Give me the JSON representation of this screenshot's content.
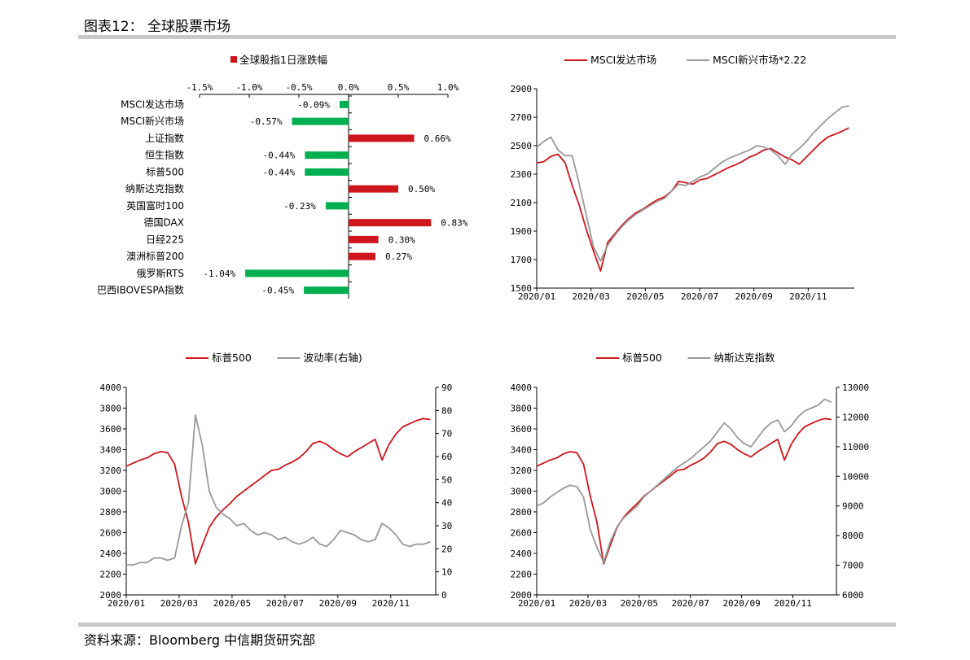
{
  "header": {
    "title": "图表12： 全球股票市场"
  },
  "footer": {
    "source": "资料来源：Bloomberg 中信期货研究部"
  },
  "colors": {
    "red": "#d0161d",
    "green": "#00b050",
    "gray": "#999999"
  },
  "chart_data": [
    {
      "type": "bar",
      "orientation": "horizontal",
      "legend": [
        "全球股指1日涨跌幅"
      ],
      "categories": [
        "MSCI发达市场",
        "MSCI新兴市场",
        "上证指数",
        "恒生指数",
        "标普500",
        "纳斯达克指数",
        "英国富时100",
        "德国DAX",
        "日经225",
        "澳洲标普200",
        "俄罗斯RTS",
        "巴西IBOVESPA指数"
      ],
      "values": [
        -0.09,
        -0.57,
        0.66,
        -0.44,
        -0.44,
        0.5,
        -0.23,
        0.83,
        0.3,
        0.27,
        -1.04,
        -0.45
      ],
      "value_labels": [
        "-0.09%",
        "-0.57%",
        "0.66%",
        "-0.44%",
        "-0.44%",
        "0.50%",
        "-0.23%",
        "0.83%",
        "0.30%",
        "0.27%",
        "-1.04%",
        "-0.45%"
      ],
      "xlim": [
        -1.5,
        1.0
      ],
      "xticks": [
        -1.5,
        -1.0,
        -0.5,
        0.0,
        0.5,
        1.0
      ],
      "xtick_labels": [
        "-1.5%",
        "-1.0%",
        "-0.5%",
        "0.0%",
        "0.5%",
        "1.0%"
      ]
    },
    {
      "type": "line",
      "series": [
        {
          "name": "MSCI发达市场",
          "color": "#d0161d",
          "values": [
            2378,
            2388,
            2425,
            2440,
            2380,
            2220,
            2080,
            1910,
            1760,
            1620,
            1820,
            1880,
            1940,
            1990,
            2030,
            2055,
            2090,
            2120,
            2140,
            2180,
            2250,
            2240,
            2230,
            2260,
            2270,
            2295,
            2320,
            2345,
            2365,
            2390,
            2420,
            2440,
            2470,
            2480,
            2450,
            2420,
            2400,
            2370,
            2420,
            2470,
            2520,
            2560,
            2580,
            2600,
            2625
          ]
        },
        {
          "name": "MSCI新兴市场*2.22",
          "color": "#999999",
          "values": [
            2490,
            2530,
            2560,
            2470,
            2430,
            2430,
            2230,
            2010,
            1790,
            1690,
            1800,
            1870,
            1930,
            1980,
            2020,
            2050,
            2080,
            2110,
            2130,
            2180,
            2230,
            2220,
            2250,
            2280,
            2300,
            2340,
            2380,
            2410,
            2430,
            2450,
            2470,
            2500,
            2490,
            2470,
            2430,
            2370,
            2440,
            2480,
            2530,
            2590,
            2640,
            2690,
            2730,
            2770,
            2780
          ]
        }
      ],
      "xtick_labels": [
        "2020/01",
        "2020/03",
        "2020/05",
        "2020/07",
        "2020/09",
        "2020/11"
      ],
      "ylim": [
        1500,
        2900
      ],
      "yticks": [
        1500,
        1700,
        1900,
        2100,
        2300,
        2500,
        2700,
        2900
      ]
    },
    {
      "type": "line",
      "dual_axis": true,
      "series": [
        {
          "name": "标普500",
          "axis": "left",
          "color": "#d0161d",
          "values": [
            3240,
            3270,
            3300,
            3320,
            3360,
            3380,
            3370,
            3260,
            2950,
            2700,
            2300,
            2480,
            2650,
            2750,
            2820,
            2880,
            2950,
            3000,
            3050,
            3100,
            3150,
            3200,
            3210,
            3250,
            3280,
            3320,
            3380,
            3460,
            3480,
            3450,
            3400,
            3360,
            3330,
            3380,
            3420,
            3460,
            3500,
            3300,
            3450,
            3550,
            3620,
            3650,
            3680,
            3700,
            3690
          ]
        },
        {
          "name": "波动率(右轴)",
          "axis": "right",
          "color": "#999999",
          "values": [
            13,
            13,
            14,
            14,
            16,
            16,
            15,
            16,
            30,
            40,
            78,
            65,
            45,
            38,
            35,
            33,
            30,
            31,
            28,
            26,
            27,
            26,
            24,
            25,
            23,
            22,
            23,
            25,
            22,
            21,
            24,
            28,
            27,
            26,
            24,
            23,
            24,
            31,
            29,
            26,
            22,
            21,
            22,
            22,
            23
          ]
        }
      ],
      "xtick_labels": [
        "2020/01",
        "2020/03",
        "2020/05",
        "2020/07",
        "2020/09",
        "2020/11"
      ],
      "ylim_left": [
        2000,
        4000
      ],
      "yticks_left": [
        2000,
        2200,
        2400,
        2600,
        2800,
        3000,
        3200,
        3400,
        3600,
        3800,
        4000
      ],
      "ylim_right": [
        0,
        90
      ],
      "yticks_right": [
        0,
        10,
        20,
        30,
        40,
        50,
        60,
        70,
        80,
        90
      ]
    },
    {
      "type": "line",
      "dual_axis": true,
      "series": [
        {
          "name": "标普500",
          "axis": "left",
          "color": "#d0161d",
          "values": [
            3240,
            3270,
            3300,
            3320,
            3360,
            3380,
            3370,
            3260,
            2950,
            2700,
            2300,
            2480,
            2650,
            2750,
            2820,
            2880,
            2950,
            3000,
            3050,
            3100,
            3150,
            3200,
            3210,
            3250,
            3280,
            3320,
            3380,
            3460,
            3480,
            3450,
            3400,
            3360,
            3330,
            3380,
            3420,
            3460,
            3500,
            3300,
            3450,
            3550,
            3620,
            3650,
            3680,
            3700,
            3690
          ]
        },
        {
          "name": "纳斯达克指数",
          "axis": "right",
          "color": "#999999",
          "values": [
            9000,
            9100,
            9300,
            9450,
            9600,
            9700,
            9650,
            9300,
            8200,
            7600,
            7100,
            7800,
            8300,
            8600,
            8800,
            9000,
            9300,
            9500,
            9700,
            9900,
            10100,
            10300,
            10450,
            10600,
            10800,
            11000,
            11200,
            11500,
            11800,
            11600,
            11300,
            11100,
            11000,
            11300,
            11600,
            11800,
            11900,
            11500,
            11700,
            12000,
            12200,
            12300,
            12400,
            12600,
            12500
          ]
        }
      ],
      "xtick_labels": [
        "2020/01",
        "2020/03",
        "2020/05",
        "2020/07",
        "2020/09",
        "2020/11"
      ],
      "ylim_left": [
        2000,
        4000
      ],
      "yticks_left": [
        2000,
        2200,
        2400,
        2600,
        2800,
        3000,
        3200,
        3400,
        3600,
        3800,
        4000
      ],
      "ylim_right": [
        6000,
        13000
      ],
      "yticks_right": [
        6000,
        7000,
        8000,
        9000,
        10000,
        11000,
        12000,
        13000
      ]
    }
  ]
}
